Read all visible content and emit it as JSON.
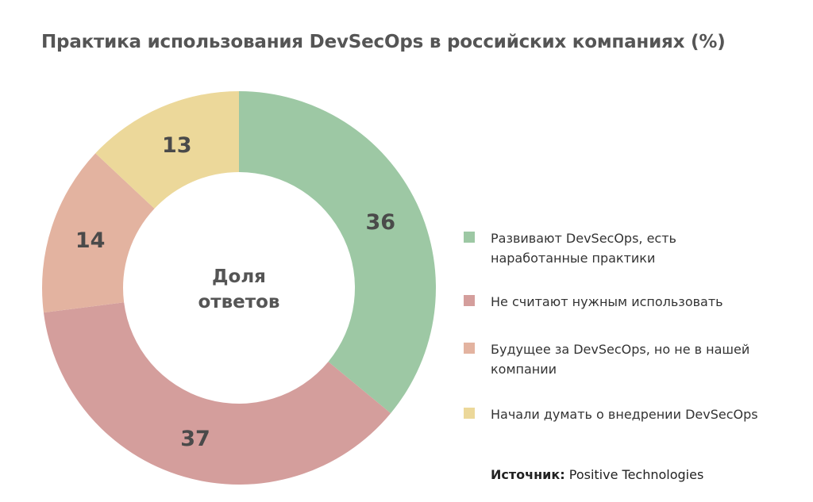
{
  "chart_data": {
    "type": "pie",
    "title": "Практика использования DevSecOps в российских компаниях (%)",
    "center_label": [
      "Доля",
      "ответов"
    ],
    "slices": [
      {
        "label": "Развивают DevSecOps, есть наработанные практики",
        "value": 36,
        "color": "#9dc8a4"
      },
      {
        "label": "Не считают нужным использовать",
        "value": 37,
        "color": "#d49e9c"
      },
      {
        "label": "Будущее за DevSecOps, но не в нашей компании",
        "value": 14,
        "color": "#e3b3a0"
      },
      {
        "label": "Начали думать о внедрении DevSecOps",
        "value": 13,
        "color": "#ecd89a"
      }
    ],
    "legend_position": "right"
  },
  "source": {
    "prefix": "Источник:",
    "text": "Positive Technologies"
  }
}
